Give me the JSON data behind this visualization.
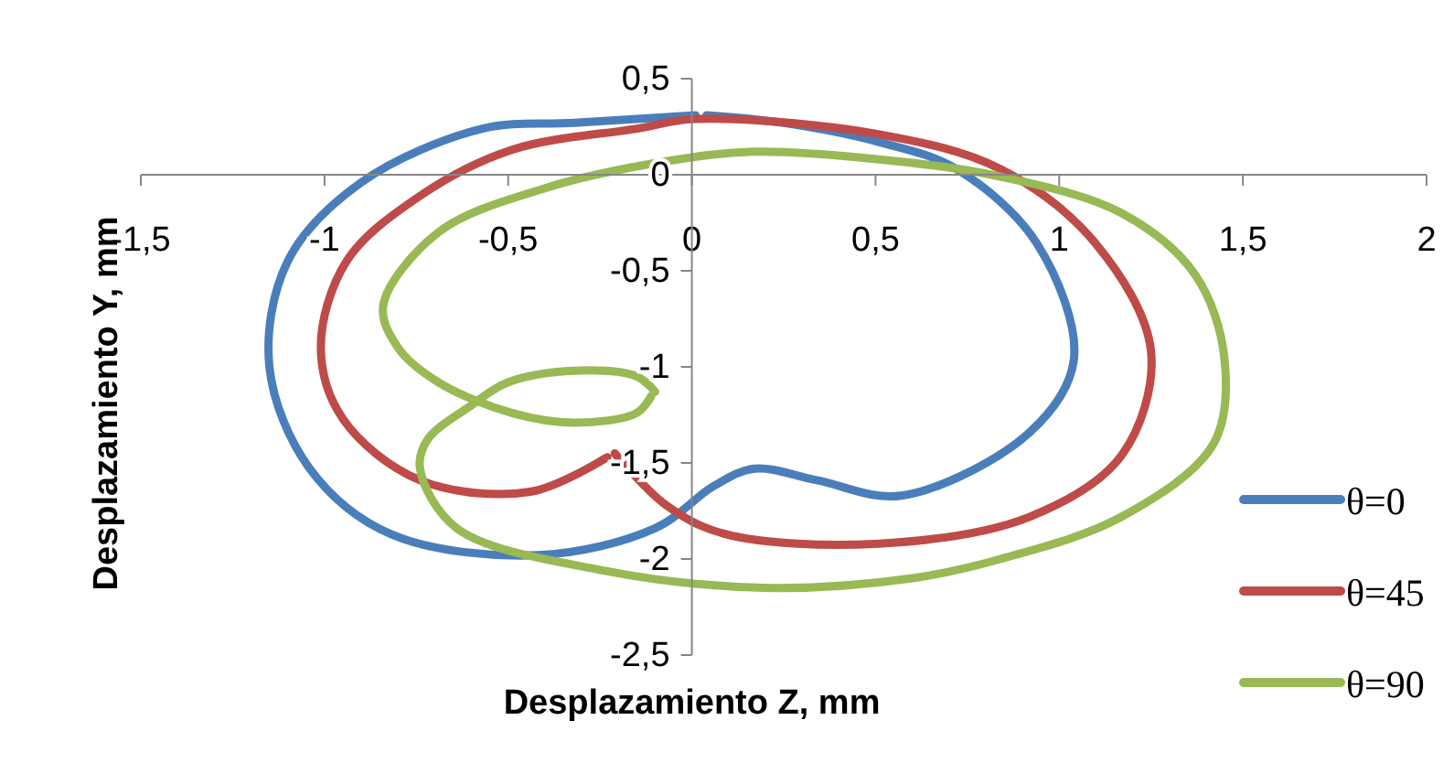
{
  "chart_data": {
    "type": "line",
    "xlabel": "Desplazamiento Z, mm",
    "ylabel": "Desplazamiento Y, mm",
    "xlim": [
      -1.5,
      2
    ],
    "ylim": [
      -2.5,
      0.5
    ],
    "xticks": [
      {
        "value": -1.5,
        "label": "-1,5"
      },
      -1,
      {
        "value": -0.5,
        "label": "-0,5"
      },
      0,
      {
        "value": 0.5,
        "label": "0,5"
      },
      1,
      {
        "value": 1.5,
        "label": "1,5"
      },
      2
    ],
    "yticks": [
      {
        "value": -2.5,
        "label": "-2,5"
      },
      -2,
      {
        "value": -1.5,
        "label": "-1,5"
      },
      -1,
      {
        "value": -0.5,
        "label": "-0,5"
      },
      0,
      {
        "value": 0.5,
        "label": "0,5"
      }
    ],
    "grid": false,
    "legend": "right",
    "marker": "none",
    "line_style": "solid",
    "series": [
      {
        "name": "θ=0",
        "color": "#4a7ebb",
        "x": [
          0.01,
          -0.32,
          -0.57,
          -0.9,
          -1.1,
          -1.15,
          -1.04,
          -0.82,
          -0.42,
          -0.1,
          0.06,
          0.17,
          0.34,
          0.57,
          0.92,
          1.04,
          0.94,
          0.72,
          0.51,
          0.25,
          0.04
        ],
        "values": [
          0.31,
          0.27,
          0.24,
          -0.04,
          -0.45,
          -1.0,
          -1.53,
          -1.87,
          -1.98,
          -1.84,
          -1.62,
          -1.53,
          -1.59,
          -1.67,
          -1.34,
          -0.96,
          -0.36,
          0.03,
          0.17,
          0.27,
          0.31
        ]
      },
      {
        "name": "θ=45",
        "color": "#be4b48",
        "x": [
          -0.21,
          -0.07,
          0.09,
          0.51,
          0.92,
          1.17,
          1.25,
          1.1,
          0.84,
          0.51,
          0.01,
          -0.15,
          -0.49,
          -0.74,
          -0.94,
          -1.01,
          -0.95,
          -0.74,
          -0.44,
          -0.23
        ],
        "values": [
          -1.45,
          -1.72,
          -1.87,
          -1.92,
          -1.78,
          -1.46,
          -0.92,
          -0.36,
          0.03,
          0.21,
          0.29,
          0.24,
          0.13,
          -0.11,
          -0.45,
          -0.9,
          -1.27,
          -1.59,
          -1.65,
          -1.47
        ]
      },
      {
        "name": "θ=90",
        "color": "#98b954",
        "x": [
          -0.1,
          -0.15,
          -0.32,
          -0.5,
          -0.6,
          -0.72,
          -0.74,
          -0.64,
          -0.24,
          0.2,
          0.6,
          0.84,
          1.17,
          1.42,
          1.45,
          1.37,
          1.17,
          0.84,
          0.51,
          0.17,
          -0.07,
          -0.4,
          -0.69,
          -0.84,
          -0.8,
          -0.69,
          -0.49,
          -0.32,
          -0.15,
          -0.11
        ],
        "values": [
          -1.13,
          -1.05,
          -1.02,
          -1.08,
          -1.2,
          -1.38,
          -1.53,
          -1.84,
          -2.06,
          -2.15,
          -2.1,
          -2.0,
          -1.78,
          -1.4,
          -0.96,
          -0.52,
          -0.2,
          -0.01,
          0.08,
          0.12,
          0.07,
          -0.07,
          -0.3,
          -0.68,
          -0.9,
          -1.08,
          -1.24,
          -1.29,
          -1.24,
          -1.15
        ]
      }
    ]
  }
}
